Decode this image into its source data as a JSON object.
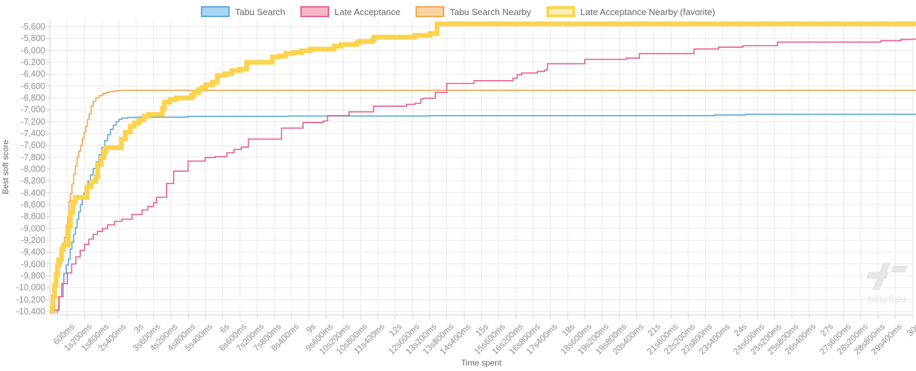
{
  "watermark": {
    "text": "timefold",
    "color": "#e6e6e6"
  },
  "style": {
    "grid_color": "#e9e9e9",
    "axis_color": "#d2d2d2",
    "tick_color": "#cfcfcf",
    "tick_label_color": "#8e8e8e",
    "legend_text_color": "#666666",
    "background": "#ffffff"
  },
  "chart_data": {
    "type": "line",
    "step": true,
    "title": "",
    "xlabel": "Time spent",
    "ylabel": "Best soft score",
    "grid": true,
    "legend_position": "top",
    "x_range_ms": [
      0,
      30000
    ],
    "x_tick_interval_ms": 600,
    "x_tick_labels": [
      "600ms",
      "1s200ms",
      "1s800ms",
      "2s400ms",
      "3s",
      "3s600ms",
      "4s200ms",
      "4s800ms",
      "5s400ms",
      "6s",
      "6s600ms",
      "7s200ms",
      "7s800ms",
      "8s400ms",
      "9s",
      "9s600ms",
      "10s200ms",
      "10s800ms",
      "11s400ms",
      "12s",
      "12s600ms",
      "13s200ms",
      "13s800ms",
      "14s400ms",
      "15s",
      "15s600ms",
      "16s200ms",
      "16s800ms",
      "17s400ms",
      "18s",
      "18s600ms",
      "19s200ms",
      "19s800ms",
      "20s400ms",
      "21s",
      "21s600ms",
      "22s200ms",
      "22s800ms",
      "23s400ms",
      "24s",
      "24s600ms",
      "25s200ms",
      "25s800ms",
      "26s400ms",
      "27s",
      "27s600ms",
      "28s200ms",
      "28s800ms",
      "29s400ms",
      "30s"
    ],
    "y_range": [
      -10400,
      -5600
    ],
    "y_tick_interval": 200,
    "y_tick_labels": [
      "-5,600",
      "-5,800",
      "-6,000",
      "-6,200",
      "-6,400",
      "-6,600",
      "-6,800",
      "-7,000",
      "-7,200",
      "-7,400",
      "-7,600",
      "-7,800",
      "-8,000",
      "-8,200",
      "-8,400",
      "-8,600",
      "-8,800",
      "-9,000",
      "-9,200",
      "-9,400",
      "-9,600",
      "-9,800",
      "-10,000",
      "-10,200",
      "-10,400"
    ],
    "series": [
      {
        "name": "Tabu Search Nearby",
        "color": "#f3a64f",
        "legend_fill": "#f9d3a2",
        "line_width": 1.7,
        "favorite": false,
        "points": [
          [
            80,
            -10350
          ],
          [
            140,
            -10150
          ],
          [
            200,
            -9950
          ],
          [
            260,
            -9800
          ],
          [
            320,
            -9650
          ],
          [
            380,
            -9500
          ],
          [
            440,
            -9330
          ],
          [
            500,
            -9150
          ],
          [
            560,
            -8950
          ],
          [
            620,
            -8800
          ],
          [
            660,
            -8550
          ],
          [
            700,
            -8420
          ],
          [
            760,
            -8250
          ],
          [
            820,
            -8090
          ],
          [
            880,
            -7950
          ],
          [
            940,
            -7800
          ],
          [
            1000,
            -7700
          ],
          [
            1060,
            -7600
          ],
          [
            1120,
            -7490
          ],
          [
            1180,
            -7380
          ],
          [
            1240,
            -7280
          ],
          [
            1300,
            -7160
          ],
          [
            1360,
            -7070
          ],
          [
            1430,
            -6940
          ],
          [
            1500,
            -6860
          ],
          [
            1590,
            -6800
          ],
          [
            1710,
            -6762
          ],
          [
            1830,
            -6730
          ],
          [
            1950,
            -6708
          ],
          [
            2070,
            -6694
          ],
          [
            2200,
            -6684
          ],
          [
            2350,
            -6676
          ],
          [
            2550,
            -6672
          ],
          [
            30000,
            -6672
          ]
        ]
      },
      {
        "name": "Tabu Search",
        "color": "#5fa8dc",
        "legend_fill": "#a8d4f3",
        "line_width": 1.7,
        "favorite": false,
        "points": [
          [
            250,
            -10370
          ],
          [
            320,
            -10150
          ],
          [
            400,
            -9930
          ],
          [
            480,
            -9760
          ],
          [
            560,
            -9620
          ],
          [
            640,
            -9520
          ],
          [
            700,
            -9350
          ],
          [
            760,
            -9230
          ],
          [
            820,
            -9100
          ],
          [
            880,
            -8990
          ],
          [
            940,
            -8850
          ],
          [
            1000,
            -8720
          ],
          [
            1060,
            -8600
          ],
          [
            1120,
            -8500
          ],
          [
            1180,
            -8400
          ],
          [
            1250,
            -8300
          ],
          [
            1320,
            -8200
          ],
          [
            1400,
            -8100
          ],
          [
            1500,
            -7990
          ],
          [
            1600,
            -7880
          ],
          [
            1700,
            -7760
          ],
          [
            1800,
            -7640
          ],
          [
            1900,
            -7520
          ],
          [
            2000,
            -7420
          ],
          [
            2100,
            -7330
          ],
          [
            2200,
            -7260
          ],
          [
            2300,
            -7200
          ],
          [
            2400,
            -7160
          ],
          [
            2500,
            -7140
          ],
          [
            2700,
            -7130
          ],
          [
            3000,
            -7124
          ],
          [
            4800,
            -7112
          ],
          [
            8300,
            -7106
          ],
          [
            13200,
            -7100
          ],
          [
            23100,
            -7088
          ],
          [
            24200,
            -7076
          ],
          [
            30000,
            -7076
          ]
        ]
      },
      {
        "name": "Late Acceptance",
        "color": "#e8608a",
        "legend_fill": "#f7b6c8",
        "line_width": 1.7,
        "favorite": false,
        "points": [
          [
            150,
            -10380
          ],
          [
            300,
            -10150
          ],
          [
            450,
            -9930
          ],
          [
            600,
            -9750
          ],
          [
            750,
            -9600
          ],
          [
            900,
            -9480
          ],
          [
            1050,
            -9370
          ],
          [
            1200,
            -9270
          ],
          [
            1350,
            -9180
          ],
          [
            1500,
            -9100
          ],
          [
            1650,
            -9050
          ],
          [
            1830,
            -9000
          ],
          [
            2000,
            -8940
          ],
          [
            2250,
            -8880
          ],
          [
            2500,
            -8845
          ],
          [
            2850,
            -8765
          ],
          [
            3200,
            -8690
          ],
          [
            3400,
            -8630
          ],
          [
            3600,
            -8570
          ],
          [
            3700,
            -8475
          ],
          [
            4050,
            -8245
          ],
          [
            4300,
            -8035
          ],
          [
            4800,
            -7865
          ],
          [
            5400,
            -7805
          ],
          [
            5750,
            -7790
          ],
          [
            6150,
            -7725
          ],
          [
            6400,
            -7670
          ],
          [
            6650,
            -7630
          ],
          [
            6900,
            -7495
          ],
          [
            8050,
            -7310
          ],
          [
            8800,
            -7215
          ],
          [
            9500,
            -7190
          ],
          [
            9650,
            -7100
          ],
          [
            10400,
            -7035
          ],
          [
            11250,
            -6940
          ],
          [
            12400,
            -6910
          ],
          [
            12700,
            -6890
          ],
          [
            12900,
            -6820
          ],
          [
            13000,
            -6805
          ],
          [
            13400,
            -6710
          ],
          [
            13800,
            -6555
          ],
          [
            14750,
            -6510
          ],
          [
            16100,
            -6470
          ],
          [
            16250,
            -6410
          ],
          [
            16400,
            -6380
          ],
          [
            16950,
            -6355
          ],
          [
            17200,
            -6330
          ],
          [
            17300,
            -6225
          ],
          [
            18600,
            -6150
          ],
          [
            20050,
            -6130
          ],
          [
            20500,
            -6055
          ],
          [
            22400,
            -5975
          ],
          [
            23250,
            -5945
          ],
          [
            24100,
            -5920
          ],
          [
            25300,
            -5860
          ],
          [
            28900,
            -5835
          ],
          [
            29600,
            -5815
          ],
          [
            30000,
            -5810
          ]
        ]
      },
      {
        "name": "Late Acceptance Nearby (favorite)",
        "color": "#fbd34d",
        "legend_fill": "#fcedbc",
        "line_width": 7,
        "favorite": true,
        "points": [
          [
            70,
            -10330
          ],
          [
            110,
            -10150
          ],
          [
            160,
            -9960
          ],
          [
            210,
            -9780
          ],
          [
            260,
            -9620
          ],
          [
            300,
            -9530
          ],
          [
            400,
            -9350
          ],
          [
            470,
            -9280
          ],
          [
            640,
            -8960
          ],
          [
            710,
            -8730
          ],
          [
            800,
            -8555
          ],
          [
            880,
            -8475
          ],
          [
            1280,
            -8300
          ],
          [
            1430,
            -8210
          ],
          [
            1590,
            -8130
          ],
          [
            1660,
            -7920
          ],
          [
            1780,
            -7805
          ],
          [
            1880,
            -7710
          ],
          [
            1950,
            -7640
          ],
          [
            2480,
            -7495
          ],
          [
            2620,
            -7380
          ],
          [
            2790,
            -7280
          ],
          [
            2930,
            -7225
          ],
          [
            3100,
            -7170
          ],
          [
            3260,
            -7110
          ],
          [
            3430,
            -7078
          ],
          [
            3910,
            -6975
          ],
          [
            3980,
            -6870
          ],
          [
            4170,
            -6825
          ],
          [
            4390,
            -6800
          ],
          [
            4930,
            -6755
          ],
          [
            5010,
            -6710
          ],
          [
            5170,
            -6660
          ],
          [
            5290,
            -6627
          ],
          [
            5410,
            -6580
          ],
          [
            5650,
            -6535
          ],
          [
            5820,
            -6420
          ],
          [
            6080,
            -6395
          ],
          [
            6320,
            -6340
          ],
          [
            6600,
            -6315
          ],
          [
            6840,
            -6200
          ],
          [
            7730,
            -6110
          ],
          [
            7970,
            -6095
          ],
          [
            8200,
            -6050
          ],
          [
            8470,
            -6035
          ],
          [
            8750,
            -6007
          ],
          [
            9040,
            -5977
          ],
          [
            9880,
            -5930
          ],
          [
            10120,
            -5900
          ],
          [
            10660,
            -5873
          ],
          [
            10740,
            -5850
          ],
          [
            11210,
            -5823
          ],
          [
            11260,
            -5777
          ],
          [
            12690,
            -5747
          ],
          [
            13220,
            -5715
          ],
          [
            13460,
            -5553
          ],
          [
            30000,
            -5553
          ]
        ]
      }
    ]
  }
}
